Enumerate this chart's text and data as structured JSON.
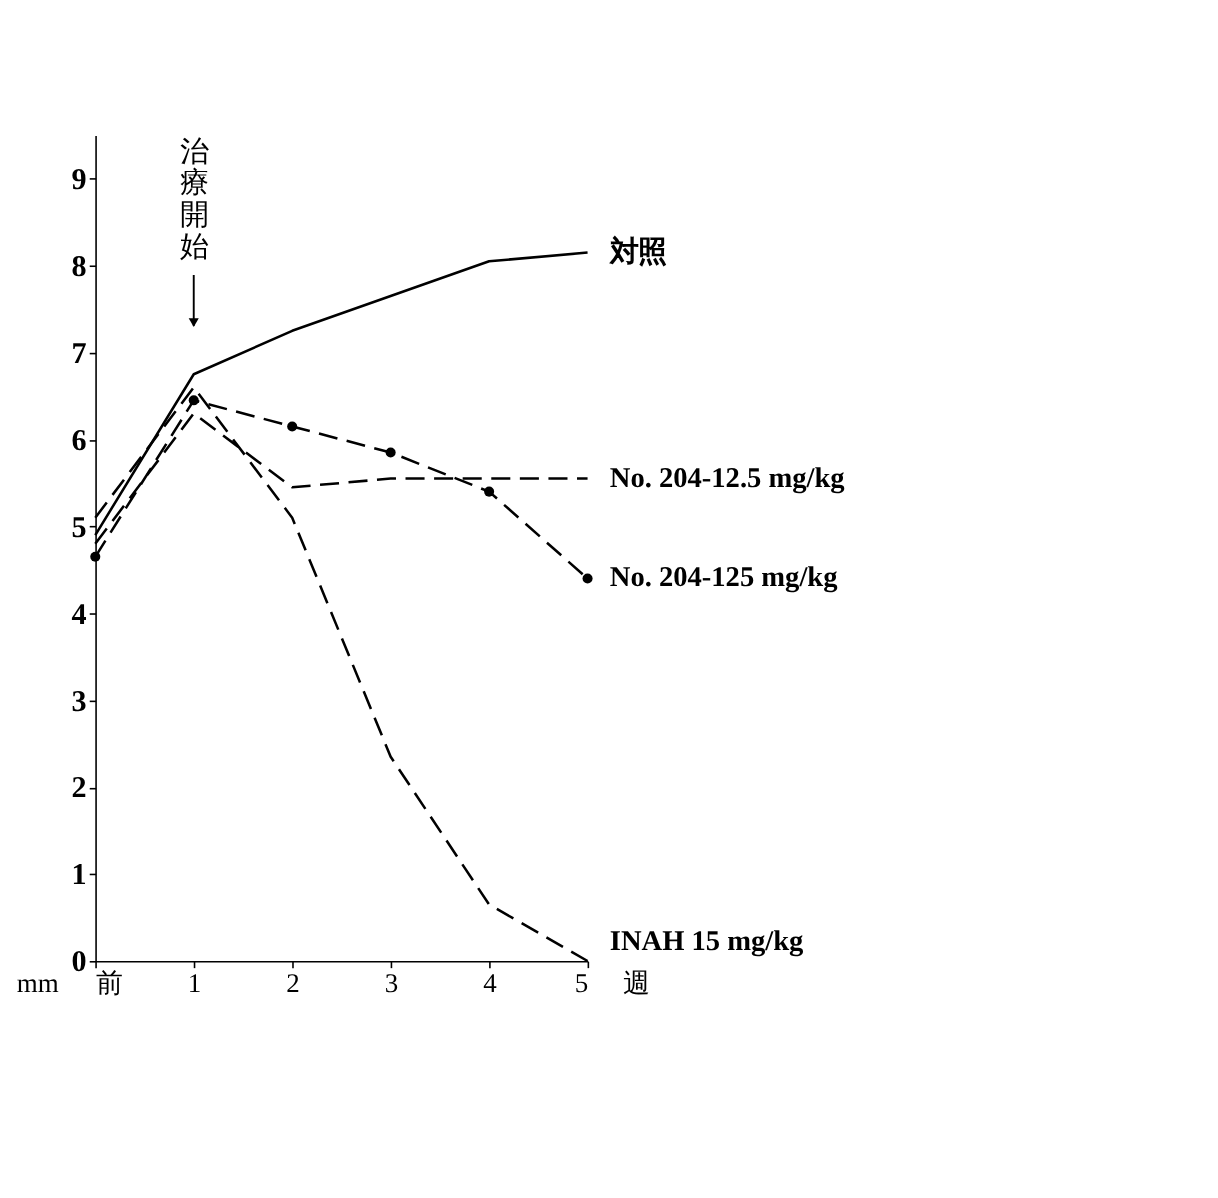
{
  "chart_data": {
    "type": "line",
    "xlabel": "週",
    "ylabel": "mm",
    "x": [
      0,
      1,
      2,
      3,
      4,
      5
    ],
    "xlim": [
      0,
      5
    ],
    "xticks": [
      {
        "value": 0,
        "label": "前"
      },
      1,
      2,
      3,
      4,
      5
    ],
    "ylim": [
      0,
      9.5
    ],
    "yticks": [
      0,
      1,
      2,
      3,
      4,
      5,
      6,
      7,
      8,
      9
    ],
    "grid": false,
    "legend": false,
    "annotations": [
      "治療開始"
    ],
    "series": [
      {
        "name": "対照",
        "color": "#000000",
        "line_style": "solid",
        "marker": "none",
        "values": [
          4.9,
          6.75,
          7.25,
          7.65,
          8.05,
          8.15
        ]
      },
      {
        "name": "No. 204-12.5 mg/kg",
        "color": "#000000",
        "line_style": "dashed",
        "marker": "none",
        "values": [
          4.8,
          6.3,
          5.45,
          5.55,
          5.55,
          5.55
        ]
      },
      {
        "name": "No. 204-125 mg/kg",
        "color": "#000000",
        "line_style": "dashed",
        "marker": "circle",
        "values": [
          4.65,
          6.45,
          6.15,
          5.85,
          5.4,
          4.4
        ]
      },
      {
        "name": "INAH  15 mg/kg",
        "color": "#000000",
        "line_style": "dashed",
        "marker": "none",
        "values": [
          5.1,
          6.6,
          5.1,
          2.35,
          0.65,
          0.0
        ]
      }
    ]
  }
}
